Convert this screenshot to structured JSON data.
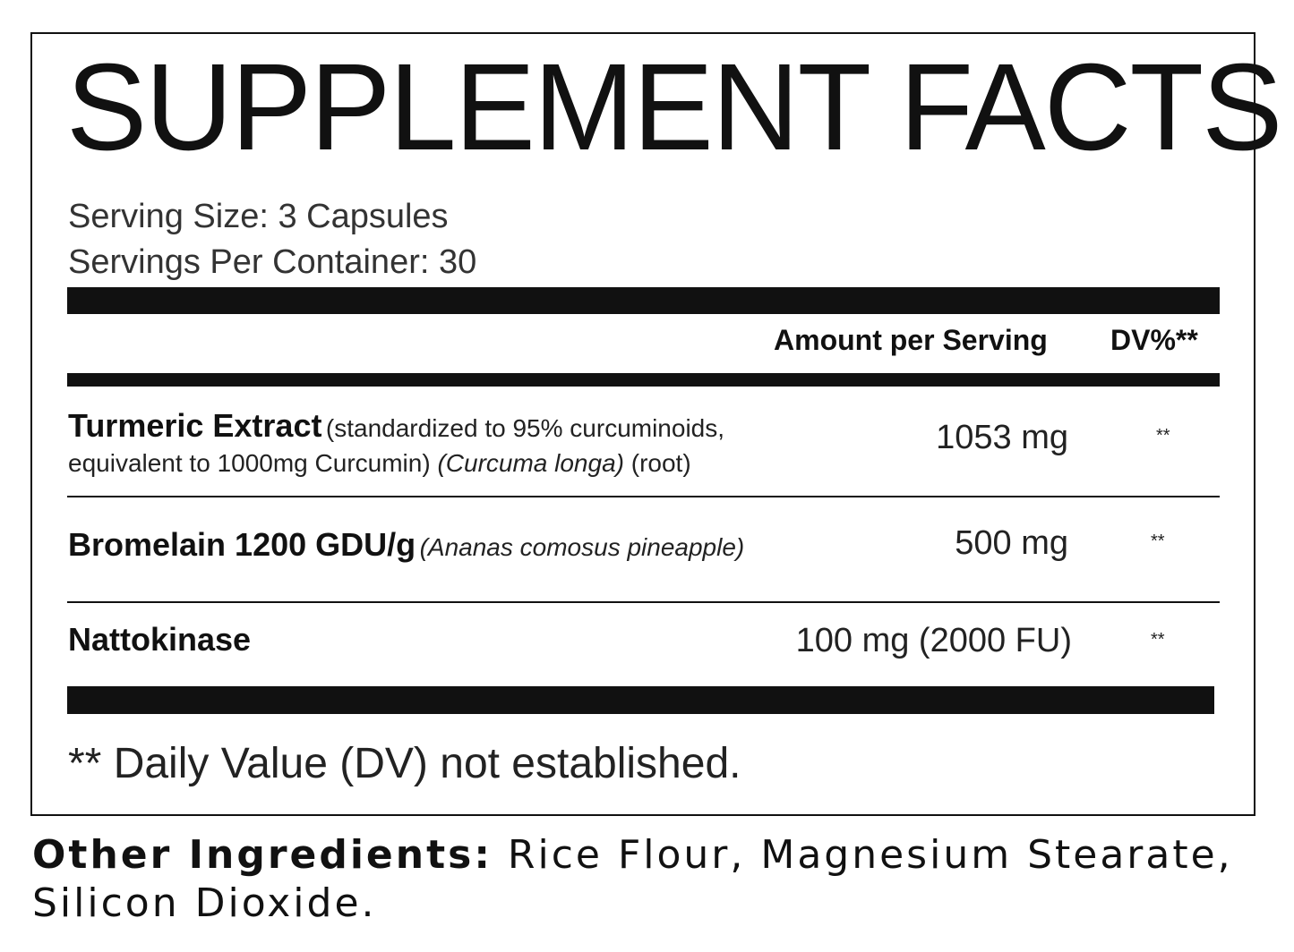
{
  "title": "SUPPLEMENT FACTS",
  "serving_size": "Serving Size: 3 Capsules",
  "servings_per_container": "Servings Per Container: 30",
  "header": {
    "amount": "Amount per Serving",
    "dv": "DV%**"
  },
  "ingredients": [
    {
      "name": "Turmeric Extract",
      "note1": "(standardized to 95% curcuminoids,",
      "note2": "equivalent to 1000mg Curcumin)",
      "latin": "(Curcuma longa)",
      "part": "(root)",
      "amount": "1053 mg",
      "dv": "**"
    },
    {
      "name": "Bromelain 1200 GDU/g",
      "latin": "(Ananas comosus pineapple)",
      "amount": "500 mg",
      "dv": "**"
    },
    {
      "name": "Nattokinase",
      "amount": "100 mg (2000 FU)",
      "dv": "**"
    }
  ],
  "footnote": "** Daily Value (DV) not established.",
  "other_ingredients": {
    "label": "Other Ingredients:",
    "line1": "Rice Flour, Magnesium Stearate,",
    "line2": "Silicon Dioxide."
  }
}
